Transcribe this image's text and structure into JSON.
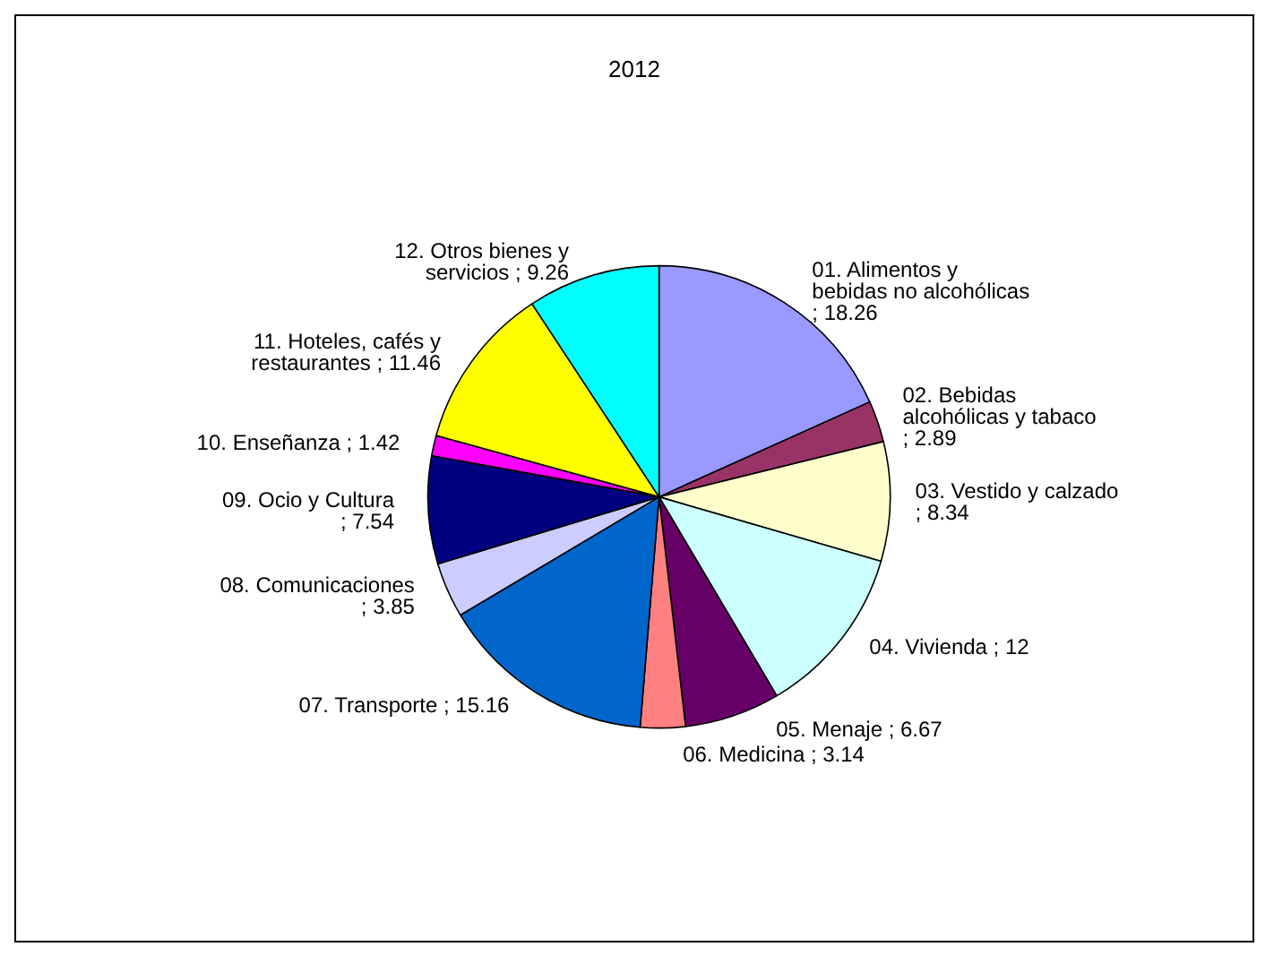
{
  "chart_data": {
    "type": "pie",
    "title": "2012",
    "categories": [
      "01. Alimentos y bebidas no alcohólicas",
      "02. Bebidas alcohólicas y tabaco",
      "03. Vestido y calzado",
      "04. Vivienda",
      "05. Menaje",
      "06. Medicina",
      "07. Transporte",
      "08. Comunicaciones",
      "09. Ocio y Cultura",
      "10. Enseñanza",
      "11. Hoteles, cafés y restaurantes",
      "12. Otros bienes y servicios"
    ],
    "values": [
      18.26,
      2.89,
      8.34,
      12,
      6.67,
      3.14,
      15.16,
      3.85,
      7.54,
      1.42,
      11.46,
      9.26
    ],
    "value_labels": [
      "; 18.26",
      "; 2.89",
      "; 8.34",
      "; 12",
      "; 6.67",
      "; 3.14",
      "; 15.16",
      "; 3.85",
      "; 7.54",
      "; 1.42",
      "; 11.46",
      "; 9.26"
    ],
    "colors": [
      "#9999ff",
      "#993366",
      "#ffffcc",
      "#ccffff",
      "#660066",
      "#ff8080",
      "#0066cc",
      "#ccccff",
      "#000080",
      "#ff00ff",
      "#ffff00",
      "#00ffff"
    ],
    "legend": false
  }
}
